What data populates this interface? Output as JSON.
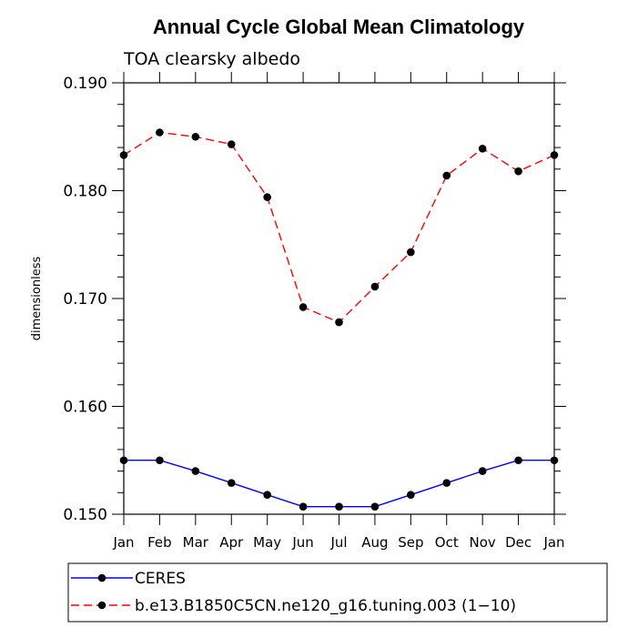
{
  "chart_data": {
    "type": "line",
    "title": "Annual Cycle Global Mean Climatology",
    "subtitle": "TOA clearsky albedo",
    "xlabel": "",
    "ylabel": "dimensionless",
    "categories": [
      "Jan",
      "Feb",
      "Mar",
      "Apr",
      "May",
      "Jun",
      "Jul",
      "Aug",
      "Sep",
      "Oct",
      "Nov",
      "Dec",
      "Jan"
    ],
    "ylim": [
      0.15,
      0.19
    ],
    "yticks": [
      "0.150",
      "0.160",
      "0.170",
      "0.180",
      "0.190"
    ],
    "legend_position": "bottom",
    "grid": false,
    "series": [
      {
        "name": "CERES",
        "color": "#0000ff",
        "dash": "solid",
        "values": [
          0.155,
          0.155,
          0.154,
          0.1529,
          0.1518,
          0.1507,
          0.1507,
          0.1507,
          0.1518,
          0.1529,
          0.154,
          0.155,
          0.155
        ]
      },
      {
        "name": "b.e13.B1850C5CN.ne120_g16.tuning.003 (1−10)",
        "color": "#ff0000",
        "dash": "dashed",
        "values": [
          0.1833,
          0.1854,
          0.185,
          0.1843,
          0.1794,
          0.1692,
          0.1678,
          0.1711,
          0.1743,
          0.1814,
          0.1839,
          0.1818,
          0.1833
        ]
      }
    ]
  }
}
